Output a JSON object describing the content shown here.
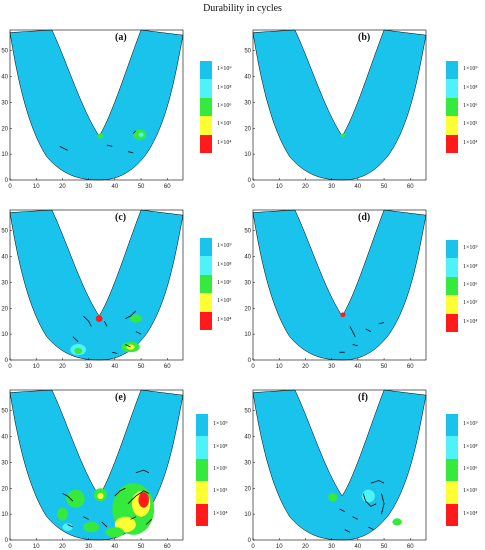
{
  "figure": {
    "title": "Durability in cycles"
  },
  "colors": {
    "band_1e9": "#19c3ec",
    "band_1e8": "#4ff2f6",
    "band_1e6": "#35ea3d",
    "band_1e5": "#ffff33",
    "band_1e4": "#ff1b1b",
    "frame": "#000000",
    "crack": "#000000"
  },
  "legend": {
    "entries": [
      {
        "label": "1×10⁹",
        "color": "#19c3ec"
      },
      {
        "label": "1×10⁸",
        "color": "#4ff2f6"
      },
      {
        "label": "1×10⁶",
        "color": "#35ea3d"
      },
      {
        "label": "1×10⁵",
        "color": "#ffff33"
      },
      {
        "label": "1×10⁴",
        "color": "#ff1b1b"
      }
    ]
  },
  "axes": {
    "x_ticks": [
      "0",
      "10",
      "20",
      "30",
      "40",
      "50",
      "60"
    ],
    "y_ticks": [
      "0",
      "10",
      "20",
      "30",
      "40",
      "50"
    ]
  },
  "panels": [
    {
      "id": "a",
      "label": "(a)"
    },
    {
      "id": "b",
      "label": "(b)"
    },
    {
      "id": "c",
      "label": "(c)"
    },
    {
      "id": "d",
      "label": "(d)"
    },
    {
      "id": "e",
      "label": "(e)"
    },
    {
      "id": "f",
      "label": "(f)"
    }
  ]
}
